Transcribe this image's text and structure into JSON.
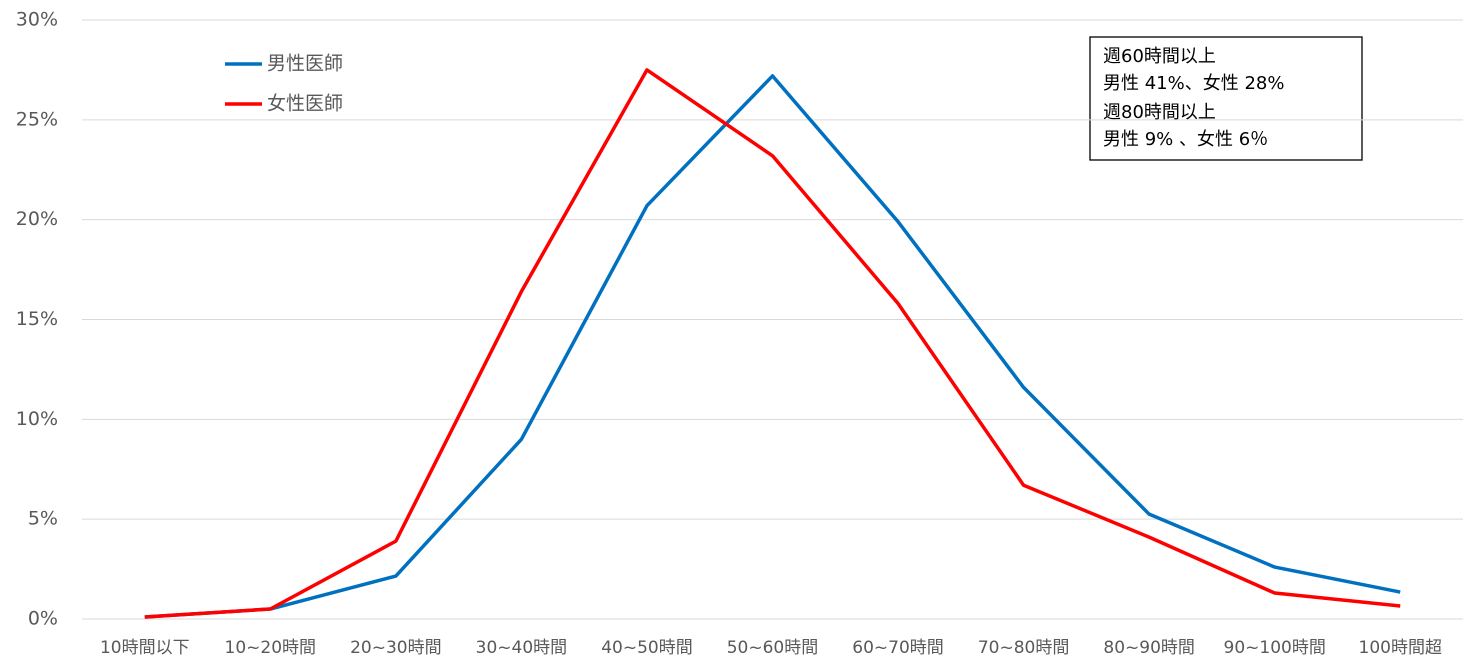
{
  "chart_data": {
    "type": "line",
    "categories": [
      "10時間以下",
      "10~20時間",
      "20~30時間",
      "30~40時間",
      "40~50時間",
      "50~60時間",
      "60~70時間",
      "70~80時間",
      "80~90時間",
      "90~100時間",
      "100時間超"
    ],
    "series": [
      {
        "name": "男性医師",
        "color": "#0070c0",
        "values": [
          0.1,
          0.5,
          2.15,
          9.0,
          20.7,
          27.2,
          19.9,
          11.6,
          5.25,
          2.6,
          1.35
        ]
      },
      {
        "name": "女性医師",
        "color": "#ff0000",
        "values": [
          0.1,
          0.5,
          3.9,
          16.4,
          27.5,
          23.2,
          15.8,
          6.7,
          4.1,
          1.3,
          0.65
        ]
      }
    ],
    "ylim": [
      0,
      30
    ],
    "yticks": [
      {
        "value": 0,
        "label": "0%"
      },
      {
        "value": 5,
        "label": "5%"
      },
      {
        "value": 10,
        "label": "10%"
      },
      {
        "value": 15,
        "label": "15%"
      },
      {
        "value": 20,
        "label": "20%"
      },
      {
        "value": 25,
        "label": "25%"
      },
      {
        "value": 30,
        "label": "30%"
      }
    ],
    "grid": true,
    "legend": "upper-left",
    "annotation": [
      "週60時間以上",
      "男性  41%、女性  28%",
      "週80時間以上",
      "男性  9%  、女性   6％"
    ]
  }
}
